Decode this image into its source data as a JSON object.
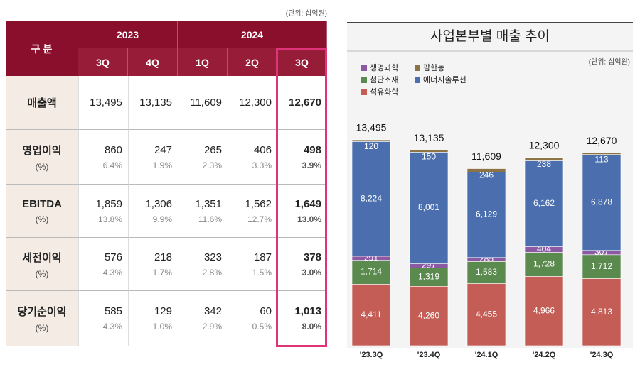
{
  "table": {
    "unit": "(단위: 십억원)",
    "corner": "구 분",
    "years": [
      "2023",
      "2024"
    ],
    "quarters": [
      "3Q",
      "4Q",
      "1Q",
      "2Q",
      "3Q"
    ],
    "rows": [
      {
        "label": "매출액",
        "values": [
          "13,495",
          "13,135",
          "11,609",
          "12,300",
          "12,670"
        ]
      },
      {
        "label": "영업이익",
        "sub": "(%)",
        "values": [
          "860",
          "247",
          "265",
          "406",
          "498"
        ],
        "percents": [
          "6.4%",
          "1.9%",
          "2.3%",
          "3.3%",
          "3.9%"
        ]
      },
      {
        "label": "EBITDA",
        "sub": "(%)",
        "values": [
          "1,859",
          "1,306",
          "1,351",
          "1,562",
          "1,649"
        ],
        "percents": [
          "13.8%",
          "9.9%",
          "11.6%",
          "12.7%",
          "13.0%"
        ]
      },
      {
        "label": "세전이익",
        "sub": "(%)",
        "values": [
          "576",
          "218",
          "323",
          "187",
          "378"
        ],
        "percents": [
          "4.3%",
          "1.7%",
          "2.8%",
          "1.5%",
          "3.0%"
        ]
      },
      {
        "label": "당기순이익",
        "sub": "(%)",
        "values": [
          "585",
          "129",
          "342",
          "60",
          "1,013"
        ],
        "percents": [
          "4.3%",
          "1.0%",
          "2.9%",
          "0.5%",
          "8.0%"
        ]
      }
    ]
  },
  "chart_data": {
    "type": "stacked_bar",
    "title": "사업본부별 매출 추이",
    "unit": "(단위: 십억원)",
    "categories": [
      "'23.3Q",
      "'23.4Q",
      "'24.1Q",
      "'24.2Q",
      "'24.3Q"
    ],
    "series": [
      {
        "name": "생명과학",
        "color": "#8c5aa3",
        "values": [
          291,
          297,
          285,
          404,
          307
        ]
      },
      {
        "name": "팜한농",
        "color": "#8c7446",
        "values": [
          120,
          150,
          246,
          238,
          113
        ]
      },
      {
        "name": "첨단소재",
        "color": "#5a8a4e",
        "values": [
          1714,
          1319,
          1583,
          1728,
          1712
        ],
        "value_labels": [
          "1,714",
          "1,319",
          "1,583",
          "1,728",
          "1,712"
        ]
      },
      {
        "name": "에너지솔루션",
        "color": "#4b6fae",
        "values": [
          8224,
          8001,
          6129,
          6162,
          6878
        ],
        "value_labels": [
          "8,224",
          "8,001",
          "6,129",
          "6,162",
          "6,878"
        ]
      },
      {
        "name": "석유화학",
        "color": "#c45d55",
        "values": [
          4411,
          4260,
          4455,
          4966,
          4813
        ],
        "value_labels": [
          "4,411",
          "4,260",
          "4,455",
          "4,966",
          "4,813"
        ]
      }
    ],
    "totals": {
      "values": [
        13495,
        13135,
        11609,
        12300,
        12670
      ],
      "value_labels": [
        "13,495",
        "13,135",
        "11,609",
        "12,300",
        "12,670"
      ]
    }
  }
}
